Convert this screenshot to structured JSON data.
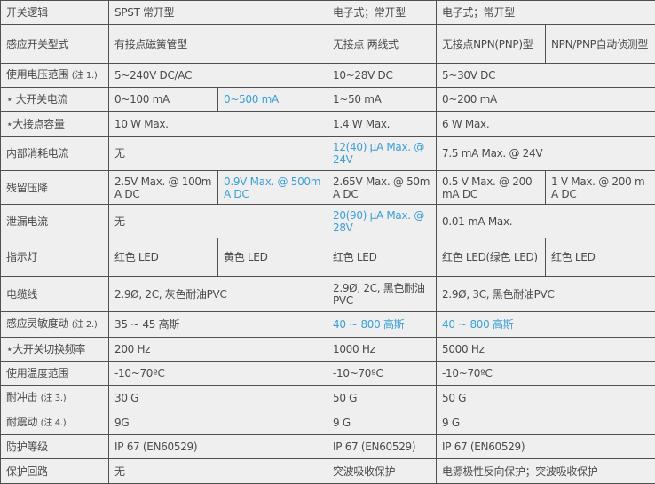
{
  "accent_color": "#3b9fd6",
  "rows": [
    {
      "label": "开关逻辑",
      "cells": [
        {
          "text": "SPST 常开型",
          "span": 2
        },
        {
          "text": "电子式；常开型",
          "span": 1
        },
        {
          "text": "电子式；常开型",
          "span": 2
        }
      ]
    },
    {
      "label": "感应开关型式",
      "cells": [
        {
          "text": "有接点磁簧管型",
          "span": 2
        },
        {
          "text": "无接点 两线式",
          "span": 1
        },
        {
          "text": "无接点NPN(PNP)型",
          "span": 1
        },
        {
          "text": "NPN/PNP自动侦测型",
          "span": 1
        }
      ]
    },
    {
      "label": "使用电压范围",
      "note": "(注 1.)",
      "cells": [
        {
          "text": "5~240V DC/AC",
          "span": 2
        },
        {
          "text": "10~28V DC",
          "span": 1
        },
        {
          "text": "5~30V DC",
          "span": 2
        }
      ]
    },
    {
      "label": "⋆ 大开关电流",
      "cells": [
        {
          "text": "0~100 mA",
          "span": 1
        },
        {
          "text": "0~500 mA",
          "span": 1,
          "highlight": true
        },
        {
          "text": "1~50 mA",
          "span": 1
        },
        {
          "text": "0~200 mA",
          "span": 2
        }
      ]
    },
    {
      "label": "⋆大接点容量",
      "cells": [
        {
          "text": "10 W Max.",
          "span": 2
        },
        {
          "text": "1.4 W Max.",
          "span": 1
        },
        {
          "text": "6 W Max.",
          "span": 2
        }
      ]
    },
    {
      "label": "内部消耗电流",
      "cells": [
        {
          "text": "无",
          "span": 2
        },
        {
          "text": "12(40) μA Max. @ 24V",
          "span": 1,
          "highlight": true
        },
        {
          "text": "7.5 mA Max. @ 24V",
          "span": 2
        }
      ]
    },
    {
      "label": "残留压降",
      "cells": [
        {
          "text": "2.5V Max. @ 100mA DC",
          "span": 1
        },
        {
          "text": "0.9V Max. @ 500mA DC",
          "span": 1,
          "highlight": true
        },
        {
          "text": "2.65V Max. @ 50mA DC",
          "span": 1
        },
        {
          "text": "0.5 V Max. @ 200 mA DC",
          "span": 1
        },
        {
          "text": "1 V Max. @ 200 mA DC",
          "span": 1
        }
      ]
    },
    {
      "label": "泄漏电流",
      "cells": [
        {
          "text": "无",
          "span": 2
        },
        {
          "text": "20(90) μA Max. @ 28V",
          "span": 1,
          "highlight": true
        },
        {
          "text": "0.01 mA Max.",
          "span": 2
        }
      ]
    },
    {
      "label": "指示灯",
      "cells": [
        {
          "text": "红色  LED",
          "span": 1
        },
        {
          "text": "黄色  LED",
          "span": 1
        },
        {
          "text": "红色  LED",
          "span": 1
        },
        {
          "text": "红色  LED(绿色  LED)",
          "span": 1
        },
        {
          "text": "红色  LED",
          "span": 1
        }
      ]
    },
    {
      "label": "电缆线",
      "cells": [
        {
          "text": "2.9Ø, 2C, 灰色耐油PVC",
          "span": 2
        },
        {
          "text": "2.9Ø, 2C, 黑色耐油PVC",
          "span": 1
        },
        {
          "text": "2.9Ø, 3C, 黑色耐油PVC",
          "span": 2
        }
      ]
    },
    {
      "label": "感应灵敏度动",
      "note": "(注 2.)",
      "cells": [
        {
          "text": "35 ~ 45 高斯",
          "span": 2
        },
        {
          "text": "40 ~ 800 高斯",
          "span": 1,
          "highlight": true
        },
        {
          "text": "40 ~ 800 高斯",
          "span": 2,
          "highlight": true
        }
      ]
    },
    {
      "label": "⋆大开关切换频率",
      "cells": [
        {
          "text": "200 Hz",
          "span": 2
        },
        {
          "text": "1000 Hz",
          "span": 1
        },
        {
          "text": "5000 Hz",
          "span": 2
        }
      ]
    },
    {
      "label": "使用温度范围",
      "cells": [
        {
          "text": "-10~70ºC",
          "span": 2
        },
        {
          "text": "-10~70ºC",
          "span": 1
        },
        {
          "text": "-10~70ºC",
          "span": 2
        }
      ]
    },
    {
      "label": "耐冲击",
      "note": "(注 3.)",
      "cells": [
        {
          "text": "30 G",
          "span": 2
        },
        {
          "text": "50 G",
          "span": 1
        },
        {
          "text": "50 G",
          "span": 2
        }
      ]
    },
    {
      "label": "耐震动",
      "note": "(注 4.)",
      "cells": [
        {
          "text": "9G",
          "span": 2
        },
        {
          "text": "9 G",
          "span": 1
        },
        {
          "text": "9 G",
          "span": 2
        }
      ]
    },
    {
      "label": "防护等级",
      "cells": [
        {
          "text": "IP 67 (EN60529)",
          "span": 2
        },
        {
          "text": "IP 67 (EN60529)",
          "span": 1
        },
        {
          "text": "IP 67 (EN60529)",
          "span": 2
        }
      ]
    },
    {
      "label": "保护回路",
      "cells": [
        {
          "text": "无",
          "span": 2
        },
        {
          "text": "突波吸收保护",
          "span": 1
        },
        {
          "text": "电源极性反向保护；突波吸收保护",
          "span": 2
        }
      ]
    }
  ]
}
